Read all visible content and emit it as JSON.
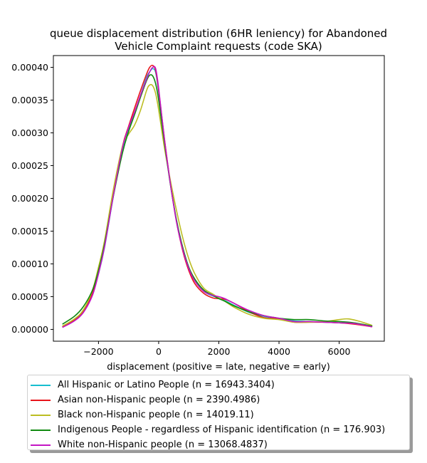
{
  "chart_data": {
    "type": "line",
    "title_lines": [
      "queue displacement distribution (6HR leniency) for Abandoned",
      "Vehicle Complaint  requests (code SKA)"
    ],
    "xlabel": "displacement (positive = late, negative = early)",
    "ylabel": "",
    "xlim": [
      -3500,
      7500
    ],
    "ylim": [
      -1.8e-05,
      0.000418
    ],
    "x_ticks": [
      -2000,
      0,
      2000,
      4000,
      6000
    ],
    "x_tick_labels": [
      "−2000",
      "0",
      "2000",
      "4000",
      "6000"
    ],
    "y_ticks": [
      0,
      5e-05,
      0.0001,
      0.00015,
      0.0002,
      0.00025,
      0.0003,
      0.00035,
      0.0004
    ],
    "y_tick_labels": [
      "0.00000",
      "0.00005",
      "0.00010",
      "0.00015",
      "0.00020",
      "0.00025",
      "0.00030",
      "0.00035",
      "0.00040"
    ],
    "grid": false,
    "legend_position": "below",
    "series": [
      {
        "name": "All Hispanic or Latino People (n = 16943.3404)",
        "color": "#17becf",
        "x": [
          -3200,
          -2800,
          -2500,
          -2200,
          -2000,
          -1800,
          -1500,
          -1200,
          -1000,
          -800,
          -600,
          -400,
          -300,
          -200,
          -100,
          0,
          200,
          400,
          600,
          800,
          1000,
          1200,
          1500,
          1800,
          2000,
          2200,
          2500,
          3000,
          3500,
          4000,
          4500,
          5000,
          5500,
          6000,
          6500,
          7100
        ],
        "y": [
          4e-06,
          1.5e-05,
          2.8e-05,
          5.5e-05,
          8.5e-05,
          0.000125,
          0.000205,
          0.000275,
          0.000305,
          0.00033,
          0.000358,
          0.000385,
          0.000393,
          0.000398,
          0.000392,
          0.000362,
          0.000285,
          0.00022,
          0.000165,
          0.000125,
          9.5e-05,
          7.5e-05,
          5.8e-05,
          5.1e-05,
          4.8e-05,
          4.4e-05,
          3.7e-05,
          2.6e-05,
          2e-05,
          1.6e-05,
          1.3e-05,
          1.2e-05,
          1.1e-05,
          1e-05,
          9e-06,
          5e-06
        ]
      },
      {
        "name": "Asian non-Hispanic people (n = 2390.4986)",
        "color": "#e8141b",
        "x": [
          -3200,
          -2800,
          -2500,
          -2200,
          -2000,
          -1800,
          -1500,
          -1200,
          -1000,
          -800,
          -600,
          -400,
          -300,
          -200,
          -100,
          0,
          200,
          400,
          600,
          800,
          1000,
          1200,
          1500,
          1800,
          2000,
          2200,
          2500,
          3000,
          3500,
          4000,
          4500,
          5000,
          5500,
          6000,
          6500,
          7100
        ],
        "y": [
          4e-06,
          1.4e-05,
          2.7e-05,
          5.5e-05,
          9e-05,
          0.00013,
          0.00021,
          0.00028,
          0.00031,
          0.000338,
          0.000365,
          0.00039,
          0.0004,
          0.000403,
          0.000395,
          0.000365,
          0.000288,
          0.00022,
          0.000163,
          0.00012,
          9e-05,
          7e-05,
          5.5e-05,
          4.8e-05,
          4.7e-05,
          4.6e-05,
          4e-05,
          2.7e-05,
          1.8e-05,
          1.6e-05,
          1.1e-05,
          1.1e-05,
          1.1e-05,
          1e-05,
          8e-06,
          4e-06
        ]
      },
      {
        "name": "Black non-Hispanic people (n = 14019.11)",
        "color": "#bcbd22",
        "x": [
          -3200,
          -2800,
          -2500,
          -2200,
          -2000,
          -1800,
          -1500,
          -1200,
          -1000,
          -800,
          -600,
          -400,
          -300,
          -200,
          -100,
          0,
          200,
          400,
          600,
          800,
          1000,
          1200,
          1500,
          1800,
          2000,
          2200,
          2500,
          3000,
          3500,
          4000,
          4500,
          5000,
          5500,
          6000,
          6300,
          6700,
          7100
        ],
        "y": [
          5e-06,
          1.6e-05,
          3e-05,
          6e-05,
          9.5e-05,
          0.000135,
          0.000215,
          0.00028,
          0.000298,
          0.000312,
          0.000335,
          0.000365,
          0.000373,
          0.000372,
          0.00036,
          0.000335,
          0.000275,
          0.000225,
          0.00018,
          0.00014,
          0.000108,
          8.5e-05,
          6.3e-05,
          5.4e-05,
          4.8e-05,
          4.3e-05,
          3.4e-05,
          2.3e-05,
          1.7e-05,
          1.5e-05,
          1.1e-05,
          1.1e-05,
          1.2e-05,
          1.5e-05,
          1.6e-05,
          1.2e-05,
          6e-06
        ]
      },
      {
        "name": "Indigenous People - regardless of Hispanic identification (n = 176.903)",
        "color": "#118a11",
        "x": [
          -3200,
          -2800,
          -2500,
          -2200,
          -2000,
          -1800,
          -1500,
          -1200,
          -1000,
          -800,
          -600,
          -400,
          -300,
          -200,
          -100,
          0,
          200,
          400,
          600,
          800,
          1000,
          1200,
          1500,
          1800,
          2000,
          2200,
          2500,
          3000,
          3500,
          4000,
          4500,
          5000,
          5500,
          6000,
          6500,
          7100
        ],
        "y": [
          8e-06,
          2e-05,
          3.5e-05,
          6e-05,
          9e-05,
          0.00013,
          0.000205,
          0.00027,
          0.000302,
          0.000328,
          0.000355,
          0.00038,
          0.000388,
          0.000387,
          0.000375,
          0.00035,
          0.000282,
          0.000218,
          0.000165,
          0.000125,
          9.5e-05,
          7.7e-05,
          6e-05,
          5.2e-05,
          4.7e-05,
          4.3e-05,
          3.6e-05,
          2.7e-05,
          2.1e-05,
          1.7e-05,
          1.5e-05,
          1.5e-05,
          1.3e-05,
          1.2e-05,
          1e-05,
          5e-06
        ]
      },
      {
        "name": "White non-Hispanic people (n = 13068.4837)",
        "color": "#c416c4",
        "x": [
          -3200,
          -2800,
          -2500,
          -2200,
          -2000,
          -1800,
          -1500,
          -1200,
          -1000,
          -800,
          -600,
          -400,
          -300,
          -200,
          -100,
          0,
          200,
          400,
          600,
          800,
          1000,
          1200,
          1500,
          1800,
          2000,
          2200,
          2500,
          3000,
          3500,
          4000,
          4500,
          5000,
          5500,
          6000,
          6500,
          7100
        ],
        "y": [
          3e-06,
          1.3e-05,
          2.6e-05,
          5.2e-05,
          8.5e-05,
          0.000126,
          0.000206,
          0.000278,
          0.000308,
          0.000332,
          0.000358,
          0.000382,
          0.000393,
          0.0004,
          0.000398,
          0.000368,
          0.000287,
          0.000219,
          0.000162,
          0.000122,
          9.3e-05,
          7.4e-05,
          5.8e-05,
          5.2e-05,
          5e-05,
          4.7e-05,
          4e-05,
          2.9e-05,
          2.1e-05,
          1.7e-05,
          1.2e-05,
          1.2e-05,
          1.1e-05,
          1e-05,
          9e-06,
          4e-06
        ]
      }
    ]
  }
}
